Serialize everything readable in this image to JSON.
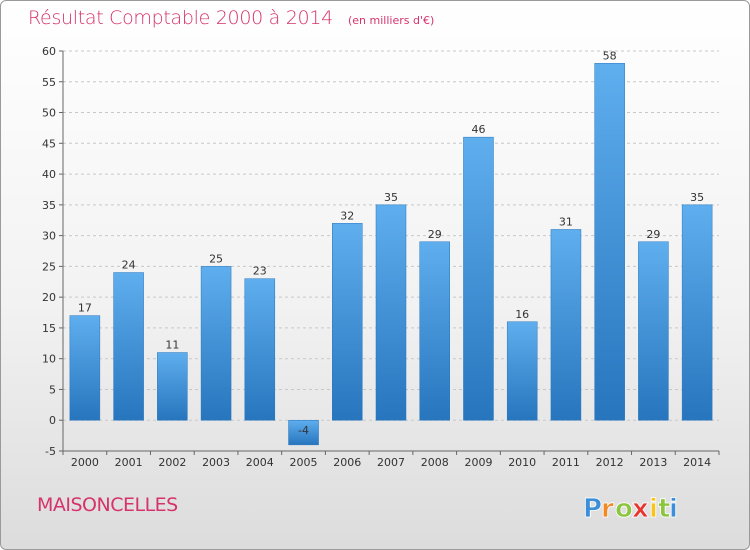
{
  "header": {
    "title": "Résultat Comptable 2000 à 2014",
    "subtitle": "(en milliers d'€)"
  },
  "footer": {
    "place": "MAISONCELLES",
    "logo_text": "Proxiti",
    "logo_letters": [
      "P",
      "r",
      "o",
      "x",
      "i",
      "t",
      "i"
    ],
    "logo_colors": [
      "#3c8fd6",
      "#f08a24",
      "#8cc63f",
      "#e8352e",
      "#f7c31d",
      "#8cc63f",
      "#3c8fd6"
    ]
  },
  "colors": {
    "title": "#d6336c",
    "bar": "#3d8fd8",
    "bar_light": "#5faeee",
    "bar_dark": "#2775bd",
    "grid": "#c8c8c8"
  },
  "chart_data": {
    "type": "bar",
    "title": "Résultat Comptable 2000 à 2014",
    "subtitle": "(en milliers d'€)",
    "xlabel": "",
    "ylabel": "",
    "ylim": [
      -5,
      60
    ],
    "y_ticks": [
      -5,
      0,
      5,
      10,
      15,
      20,
      25,
      30,
      35,
      40,
      45,
      50,
      55,
      60
    ],
    "grid": true,
    "categories": [
      "2000",
      "2001",
      "2002",
      "2003",
      "2004",
      "2005",
      "2006",
      "2007",
      "2008",
      "2009",
      "2010",
      "2011",
      "2012",
      "2013",
      "2014"
    ],
    "values": [
      17,
      24,
      11,
      25,
      23,
      -4,
      32,
      35,
      29,
      46,
      16,
      31,
      58,
      29,
      35
    ],
    "data_labels": [
      "17",
      "24",
      "11",
      "25",
      "23",
      "-4",
      "32",
      "35",
      "29",
      "46",
      "16",
      "31",
      "58",
      "29",
      "35"
    ]
  }
}
